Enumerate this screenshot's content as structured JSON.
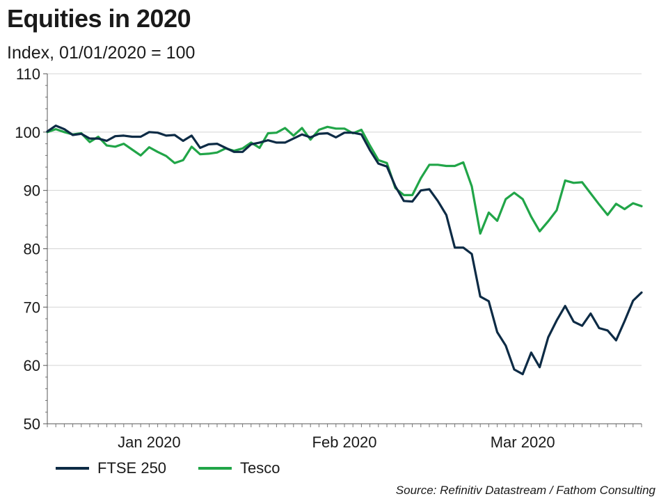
{
  "chart_data": {
    "type": "line",
    "title": "Equities in 2020",
    "subtitle": "Index, 01/01/2020 = 100",
    "source": "Source: Refinitiv Datastream / Fathom Consulting",
    "ylim": [
      50,
      110
    ],
    "yticks": [
      50,
      60,
      70,
      80,
      90,
      100,
      110
    ],
    "grid": true,
    "legend_position": "bottom-left",
    "x_labels": [
      {
        "label": "Jan 2020",
        "index": 12
      },
      {
        "label": "Feb 2020",
        "index": 35
      },
      {
        "label": "Mar 2020",
        "index": 56
      }
    ],
    "series": [
      {
        "name": "FTSE 250",
        "color": "#0d2b45",
        "values": [
          100.1,
          101.1,
          100.5,
          99.5,
          99.7,
          98.9,
          98.9,
          98.5,
          99.3,
          99.4,
          99.2,
          99.2,
          100.0,
          99.9,
          99.4,
          99.5,
          98.5,
          99.4,
          97.3,
          97.9,
          98.0,
          97.3,
          96.6,
          96.6,
          97.9,
          98.2,
          98.6,
          98.2,
          98.2,
          98.9,
          99.6,
          99.1,
          99.7,
          99.8,
          99.1,
          99.9,
          99.9,
          99.6,
          96.9,
          94.6,
          94.1,
          90.7,
          88.2,
          88.1,
          90.0,
          90.2,
          88.2,
          85.8,
          80.2,
          80.2,
          79.1,
          71.8,
          71.0,
          65.7,
          63.4,
          59.3,
          58.5,
          62.2,
          59.7,
          64.8,
          67.7,
          70.2,
          67.5,
          66.8,
          68.9,
          66.4,
          66.0,
          64.3,
          67.6,
          71.1,
          72.5
        ]
      },
      {
        "name": "Tesco",
        "color": "#21a548",
        "values": [
          100.0,
          100.5,
          100.0,
          99.6,
          99.8,
          98.3,
          99.2,
          97.7,
          97.5,
          98.0,
          97.0,
          96.0,
          97.4,
          96.6,
          95.9,
          94.7,
          95.2,
          97.5,
          96.2,
          96.3,
          96.5,
          97.2,
          96.8,
          97.2,
          98.2,
          97.3,
          99.8,
          99.9,
          100.7,
          99.4,
          100.7,
          98.7,
          100.4,
          100.9,
          100.6,
          100.6,
          99.8,
          100.4,
          97.7,
          95.2,
          94.7,
          90.4,
          89.2,
          89.2,
          92.1,
          94.4,
          94.4,
          94.2,
          94.2,
          94.8,
          90.7,
          82.6,
          86.2,
          84.8,
          88.5,
          89.6,
          88.5,
          85.5,
          83.0,
          84.7,
          86.6,
          91.7,
          91.3,
          91.4,
          89.5,
          87.6,
          85.8,
          87.7,
          86.8,
          87.8,
          87.3
        ]
      }
    ]
  }
}
